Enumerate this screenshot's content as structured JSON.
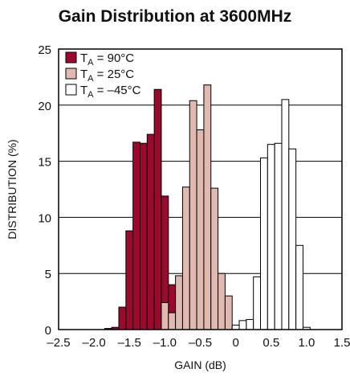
{
  "chart_data": {
    "type": "bar",
    "title": "Gain Distribution at 3600MHz",
    "xlabel": "GAIN (dB)",
    "ylabel": "DISTRIBUTION (%)",
    "xlim": [
      -2.5,
      1.5
    ],
    "ylim": [
      0,
      25
    ],
    "x_ticks": [
      "–2.5",
      "–2.0",
      "–1.5",
      "–1.0",
      "–0.5",
      "0",
      "0.5",
      "1.0",
      "1.5"
    ],
    "y_ticks": [
      "0",
      "5",
      "10",
      "15",
      "20",
      "25"
    ],
    "grid": "horizontal",
    "legend_position": "top-left",
    "bin_width": 0.1,
    "series": [
      {
        "label_main": "T",
        "label_sub": "A",
        "label_rest": " = 90°C",
        "fill": "#9b0a2e",
        "bins": [
          {
            "x": -1.8,
            "y": 0.1
          },
          {
            "x": -1.7,
            "y": 0.2
          },
          {
            "x": -1.6,
            "y": 2.0
          },
          {
            "x": -1.5,
            "y": 8.8
          },
          {
            "x": -1.4,
            "y": 16.7
          },
          {
            "x": -1.3,
            "y": 16.6
          },
          {
            "x": -1.2,
            "y": 17.4
          },
          {
            "x": -1.1,
            "y": 21.4
          },
          {
            "x": -1.0,
            "y": 11.9
          },
          {
            "x": -0.9,
            "y": 4.0
          }
        ]
      },
      {
        "label_main": "T",
        "label_sub": "A",
        "label_rest": " = 25°C",
        "fill": "#e2b9b1",
        "bins": [
          {
            "x": -1.0,
            "y": 2.4
          },
          {
            "x": -0.9,
            "y": 1.5
          },
          {
            "x": -0.8,
            "y": 4.8
          },
          {
            "x": -0.7,
            "y": 12.7
          },
          {
            "x": -0.6,
            "y": 20.4
          },
          {
            "x": -0.5,
            "y": 17.8
          },
          {
            "x": -0.4,
            "y": 21.8
          },
          {
            "x": -0.3,
            "y": 12.6
          },
          {
            "x": -0.2,
            "y": 5.0
          },
          {
            "x": -0.1,
            "y": 3.0
          },
          {
            "x": 0.0,
            "y": 0.3
          }
        ]
      },
      {
        "label_main": "T",
        "label_sub": "A",
        "label_rest": " = –45°C",
        "fill": "#ffffff",
        "bins": [
          {
            "x": 0.0,
            "y": 0.4
          },
          {
            "x": 0.1,
            "y": 0.8
          },
          {
            "x": 0.2,
            "y": 0.9
          },
          {
            "x": 0.3,
            "y": 4.7
          },
          {
            "x": 0.4,
            "y": 15.3
          },
          {
            "x": 0.5,
            "y": 16.5
          },
          {
            "x": 0.6,
            "y": 16.6
          },
          {
            "x": 0.7,
            "y": 20.5
          },
          {
            "x": 0.8,
            "y": 16.1
          },
          {
            "x": 0.9,
            "y": 7.5
          },
          {
            "x": 1.0,
            "y": 0.2
          }
        ]
      }
    ]
  }
}
